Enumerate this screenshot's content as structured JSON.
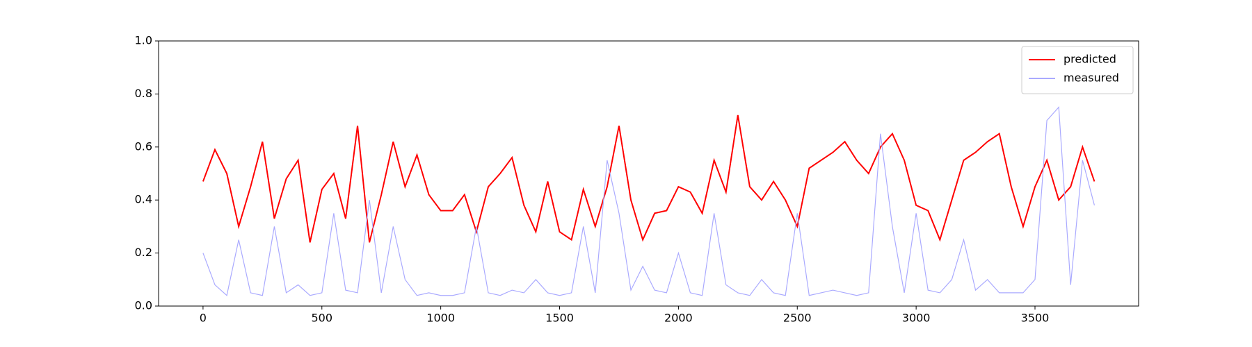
{
  "chart_data": {
    "type": "line",
    "x": [
      0,
      50,
      100,
      150,
      200,
      250,
      300,
      350,
      400,
      450,
      500,
      550,
      600,
      650,
      700,
      750,
      800,
      850,
      900,
      950,
      1000,
      1050,
      1100,
      1150,
      1200,
      1250,
      1300,
      1350,
      1400,
      1450,
      1500,
      1550,
      1600,
      1650,
      1700,
      1750,
      1800,
      1850,
      1900,
      1950,
      2000,
      2050,
      2100,
      2150,
      2200,
      2250,
      2300,
      2350,
      2400,
      2450,
      2500,
      2550,
      2600,
      2650,
      2700,
      2750,
      2800,
      2850,
      2900,
      2950,
      3000,
      3050,
      3100,
      3150,
      3200,
      3250,
      3300,
      3350,
      3400,
      3450,
      3500,
      3550,
      3600,
      3650,
      3700,
      3750
    ],
    "series": [
      {
        "name": "predicted",
        "color": "#ff0000",
        "values": [
          0.47,
          0.59,
          0.5,
          0.3,
          0.45,
          0.62,
          0.33,
          0.48,
          0.55,
          0.24,
          0.44,
          0.5,
          0.33,
          0.68,
          0.24,
          0.42,
          0.62,
          0.45,
          0.57,
          0.42,
          0.36,
          0.36,
          0.42,
          0.28,
          0.45,
          0.5,
          0.56,
          0.38,
          0.28,
          0.47,
          0.28,
          0.25,
          0.44,
          0.3,
          0.45,
          0.68,
          0.4,
          0.25,
          0.35,
          0.36,
          0.45,
          0.43,
          0.35,
          0.55,
          0.43,
          0.72,
          0.45,
          0.4,
          0.47,
          0.4,
          0.3,
          0.52,
          0.55,
          0.58,
          0.62,
          0.55,
          0.5,
          0.6,
          0.65,
          0.55,
          0.38,
          0.36,
          0.25,
          0.4,
          0.55,
          0.58,
          0.62,
          0.65,
          0.45,
          0.3,
          0.45,
          0.55,
          0.4,
          0.45,
          0.6,
          0.47
        ]
      },
      {
        "name": "measured",
        "color": "#aaaaff",
        "values": [
          0.2,
          0.08,
          0.04,
          0.25,
          0.05,
          0.04,
          0.3,
          0.05,
          0.08,
          0.04,
          0.05,
          0.35,
          0.06,
          0.05,
          0.4,
          0.05,
          0.3,
          0.1,
          0.04,
          0.05,
          0.04,
          0.04,
          0.05,
          0.3,
          0.05,
          0.04,
          0.06,
          0.05,
          0.1,
          0.05,
          0.04,
          0.05,
          0.3,
          0.05,
          0.55,
          0.35,
          0.06,
          0.15,
          0.06,
          0.05,
          0.2,
          0.05,
          0.04,
          0.35,
          0.08,
          0.05,
          0.04,
          0.1,
          0.05,
          0.04,
          0.35,
          0.04,
          0.05,
          0.06,
          0.05,
          0.04,
          0.05,
          0.65,
          0.3,
          0.05,
          0.35,
          0.06,
          0.05,
          0.1,
          0.25,
          0.06,
          0.1,
          0.05,
          0.05,
          0.05,
          0.1,
          0.7,
          0.75,
          0.08,
          0.55,
          0.38
        ]
      }
    ],
    "xlim": [
      -187,
      3936
    ],
    "ylim": [
      0,
      1
    ],
    "xticks": [
      0,
      500,
      1000,
      1500,
      2000,
      2500,
      3000,
      3500
    ],
    "yticks": [
      {
        "value": 0,
        "label": "0.0"
      },
      {
        "value": 0.2,
        "label": "0.2"
      },
      {
        "value": 0.4,
        "label": "0.4"
      },
      {
        "value": 0.6,
        "label": "0.6"
      },
      {
        "value": 0.8,
        "label": "0.8"
      },
      {
        "value": 1,
        "label": "1.0"
      }
    ],
    "legend": "upper right"
  }
}
